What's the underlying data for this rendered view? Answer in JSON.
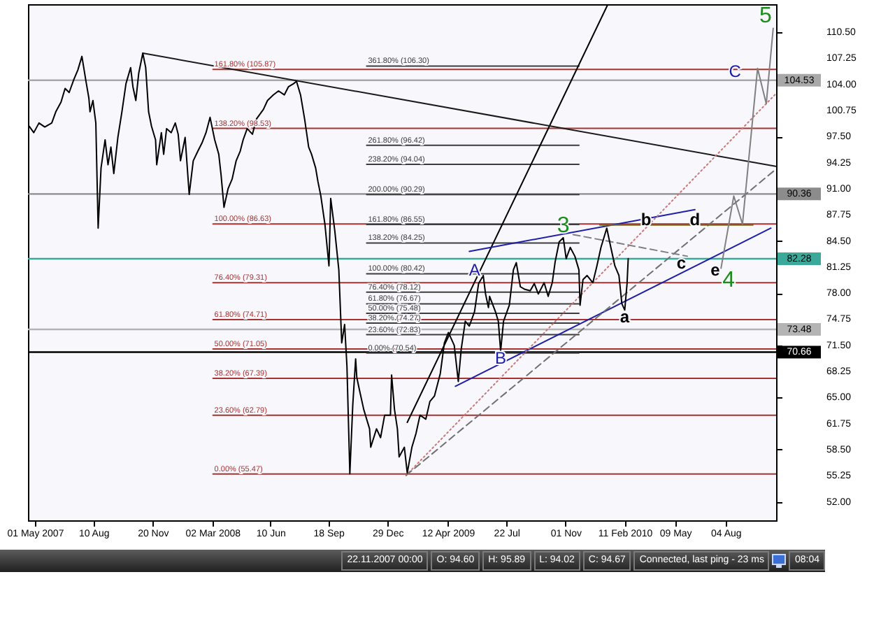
{
  "chart_data": {
    "type": "line",
    "xlim": [
      "2007-04-19",
      "2010-10-30"
    ],
    "xticks": [
      {
        "value": "2007-05-01",
        "label": "01 May 2007"
      },
      {
        "value": "2007-08-10",
        "label": "10 Aug"
      },
      {
        "value": "2007-11-20",
        "label": "20 Nov"
      },
      {
        "value": "2008-03-02",
        "label": "02 Mar 2008"
      },
      {
        "value": "2008-06-10",
        "label": "10 Jun"
      },
      {
        "value": "2008-09-18",
        "label": "18 Sep"
      },
      {
        "value": "2008-12-29",
        "label": "29 Dec"
      },
      {
        "value": "2009-04-12",
        "label": "12 Apr 2009"
      },
      {
        "value": "2009-07-22",
        "label": "22 Jul"
      },
      {
        "value": "2009-11-01",
        "label": "01 Nov"
      },
      {
        "value": "2010-02-11",
        "label": "11 Feb 2010"
      },
      {
        "value": "2010-05-09",
        "label": "09 May"
      },
      {
        "value": "2010-08-04",
        "label": "04 Aug"
      }
    ],
    "ylim": [
      49.7,
      114.0
    ],
    "yticks": [
      {
        "value": 52,
        "label": "52.00"
      },
      {
        "value": 55.25,
        "label": "55.25"
      },
      {
        "value": 58.5,
        "label": "58.50"
      },
      {
        "value": 61.75,
        "label": "61.75"
      },
      {
        "value": 65,
        "label": "65.00"
      },
      {
        "value": 68.25,
        "label": "68.25"
      },
      {
        "value": 71.5,
        "label": "71.50"
      },
      {
        "value": 74.75,
        "label": "74.75"
      },
      {
        "value": 78,
        "label": "78.00"
      },
      {
        "value": 81.25,
        "label": "81.25"
      },
      {
        "value": 84.5,
        "label": "84.50"
      },
      {
        "value": 87.75,
        "label": "87.75"
      },
      {
        "value": 91,
        "label": "91.00"
      },
      {
        "value": 94.25,
        "label": "94.25"
      },
      {
        "value": 97.5,
        "label": "97.50"
      },
      {
        "value": 100.75,
        "label": "100.75"
      },
      {
        "value": 104,
        "label": "104.00"
      },
      {
        "value": 107.25,
        "label": "107.25"
      },
      {
        "value": 110.5,
        "label": "110.50"
      }
    ],
    "series": [
      {
        "name": "161.80% (105.87)",
        "color": "#a83232",
        "x": [
          "2008-03-03",
          "2010-10-30"
        ],
        "values": [
          105.87,
          105.87
        ]
      },
      {
        "name": "138.20% (98.53)",
        "color": "#a83232",
        "x": [
          "2008-03-03",
          "2010-10-30"
        ],
        "values": [
          98.53,
          98.53
        ]
      },
      {
        "name": "100.00% (86.63)",
        "color": "#a83232",
        "x": [
          "2008-03-03",
          "2010-10-30"
        ],
        "values": [
          86.63,
          86.63
        ]
      },
      {
        "name": "76.40% (79.31)",
        "color": "#a83232",
        "x": [
          "2008-03-03",
          "2010-10-30"
        ],
        "values": [
          79.31,
          79.31
        ]
      },
      {
        "name": "61.80% (74.71)",
        "color": "#a83232",
        "x": [
          "2008-03-03",
          "2010-10-30"
        ],
        "values": [
          74.71,
          74.71
        ]
      },
      {
        "name": "50.00% (71.05)",
        "color": "#a83232",
        "x": [
          "2008-03-03",
          "2010-10-30"
        ],
        "values": [
          71.05,
          71.05
        ]
      },
      {
        "name": "38.20% (67.39)",
        "color": "#a83232",
        "x": [
          "2008-03-03",
          "2010-10-30"
        ],
        "values": [
          67.39,
          67.39
        ]
      },
      {
        "name": "23.60% (62.79)",
        "color": "#a83232",
        "x": [
          "2008-03-03",
          "2010-10-30"
        ],
        "values": [
          62.79,
          62.79
        ]
      },
      {
        "name": "0.00% (55.47)",
        "color": "#a83232",
        "x": [
          "2008-03-03",
          "2010-10-30"
        ],
        "values": [
          55.47,
          55.47
        ]
      },
      {
        "name": "361.80% (106.30)",
        "color": "#3c3c3c",
        "x": [
          "2008-11-23",
          "2009-11-24"
        ],
        "values": [
          106.3,
          106.3
        ]
      },
      {
        "name": "261.80% (96.42)",
        "color": "#3c3c3c",
        "x": [
          "2008-11-23",
          "2009-11-24"
        ],
        "values": [
          96.42,
          96.42
        ]
      },
      {
        "name": "238.20% (94.04)",
        "color": "#3c3c3c",
        "x": [
          "2008-11-23",
          "2009-11-24"
        ],
        "values": [
          94.04,
          94.04
        ]
      },
      {
        "name": "200.00% (90.29)",
        "color": "#3c3c3c",
        "x": [
          "2008-11-23",
          "2009-11-24"
        ],
        "values": [
          90.29,
          90.29
        ]
      },
      {
        "name": "161.80% (86.55)",
        "color": "#3c3c3c",
        "x": [
          "2008-11-23",
          "2009-11-24"
        ],
        "values": [
          86.55,
          86.55
        ]
      },
      {
        "name": "138.20% (84.25)",
        "color": "#3c3c3c",
        "x": [
          "2008-11-23",
          "2009-11-24"
        ],
        "values": [
          84.25,
          84.25
        ]
      },
      {
        "name": "100.00% (80.42)",
        "color": "#3c3c3c",
        "x": [
          "2008-11-23",
          "2009-11-24"
        ],
        "values": [
          80.42,
          80.42
        ]
      },
      {
        "name": "76.40% (78.12)",
        "color": "#3c3c3c",
        "x": [
          "2008-11-23",
          "2009-11-24"
        ],
        "values": [
          78.12,
          78.12
        ]
      },
      {
        "name": "61.80% (76.67)",
        "color": "#3c3c3c",
        "x": [
          "2008-11-23",
          "2009-11-24"
        ],
        "values": [
          76.67,
          76.67
        ]
      },
      {
        "name": "50.00% (75.48)",
        "color": "#3c3c3c",
        "x": [
          "2008-11-23",
          "2009-11-24"
        ],
        "values": [
          75.48,
          75.48
        ]
      },
      {
        "name": "38.20% (74.27)",
        "color": "#3c3c3c",
        "x": [
          "2008-11-23",
          "2009-11-24"
        ],
        "values": [
          74.27,
          74.27
        ]
      },
      {
        "name": "23.60% (72.83)",
        "color": "#3c3c3c",
        "x": [
          "2008-11-23",
          "2009-11-24"
        ],
        "values": [
          72.83,
          72.83
        ]
      },
      {
        "name": "0.00% (70.54)",
        "color": "#3c3c3c",
        "x": [
          "2008-11-23",
          "2009-11-24"
        ],
        "values": [
          70.54,
          70.54
        ]
      },
      {
        "color": "#000000",
        "x": [
          "2009-02-01",
          "2010-01-13"
        ],
        "values": [
          61.9,
          114.0
        ]
      },
      {
        "color": "#1a1a1a",
        "x": [
          "2007-11-03",
          "2010-10-29"
        ],
        "values": [
          107.9,
          93.8
        ]
      },
      {
        "color": "#1f1fa8",
        "x": [
          "2009-05-19",
          "2010-06-12"
        ],
        "values": [
          83.2,
          88.4
        ]
      },
      {
        "color": "#1f1fa8",
        "x": [
          "2009-04-25",
          "2010-10-21"
        ],
        "values": [
          66.4,
          86.1
        ]
      },
      {
        "color": "#c87878",
        "line_style": "dotted",
        "x": [
          "2009-01-30",
          "2010-10-29"
        ],
        "values": [
          55.3,
          102.8
        ]
      },
      {
        "color": "#707070",
        "line_style": "dashed",
        "x": [
          "2009-01-30",
          "2010-10-29"
        ],
        "values": [
          55.3,
          93.4
        ]
      },
      {
        "color": "#808080",
        "line_style": "dashed",
        "x": [
          "2009-11-14",
          "2010-05-30"
        ],
        "values": [
          85.3,
          82.6
        ]
      },
      {
        "color": "#6e6e1e",
        "x": [
          "2009-12-30",
          "2010-09-20"
        ],
        "values": [
          86.5,
          86.5
        ]
      },
      {
        "color": "#808080",
        "x": [
          "2010-07-27",
          "2010-08-18",
          "2010-09-02",
          "2010-09-28",
          "2010-10-13",
          "2010-10-25"
        ],
        "values": [
          81.1,
          90.1,
          86.6,
          106.0,
          101.6,
          111.0
        ]
      },
      {
        "color": "#000000",
        "x": [
          "2007-04-21",
          "2007-04-29",
          "2007-05-08",
          "2007-05-18",
          "2007-05-30",
          "2007-06-06",
          "2007-06-15",
          "2007-06-22",
          "2007-06-29",
          "2007-07-07",
          "2007-07-14",
          "2007-07-21",
          "2007-07-28",
          "2007-08-02",
          "2007-08-04",
          "2007-08-09",
          "2007-08-14",
          "2007-08-18",
          "2007-08-23",
          "2007-08-30",
          "2007-09-04",
          "2007-09-09",
          "2007-09-14",
          "2007-09-21",
          "2007-09-28",
          "2007-10-05",
          "2007-10-13",
          "2007-10-17",
          "2007-10-22",
          "2007-10-27",
          "2007-11-03",
          "2007-11-08",
          "2007-11-13",
          "2007-11-18",
          "2007-11-25",
          "2007-11-27",
          "2007-12-05",
          "2007-12-09",
          "2007-12-14",
          "2007-12-22",
          "2007-12-29",
          "2008-01-03",
          "2008-01-07",
          "2008-01-15",
          "2008-01-22",
          "2008-01-29",
          "2008-02-06",
          "2008-02-13",
          "2008-02-20",
          "2008-02-27",
          "2008-03-06",
          "2008-03-13",
          "2008-03-17",
          "2008-03-22",
          "2008-03-29",
          "2008-04-05",
          "2008-04-12",
          "2008-04-19",
          "2008-04-24",
          "2008-05-01",
          "2008-05-10",
          "2008-05-17",
          "2008-05-29",
          "2008-06-05",
          "2008-06-15",
          "2008-06-24",
          "2008-07-04",
          "2008-07-11",
          "2008-07-20",
          "2008-07-25",
          "2008-08-01",
          "2008-08-08",
          "2008-08-15",
          "2008-08-20",
          "2008-08-27",
          "2008-08-31",
          "2008-09-05",
          "2008-09-12",
          "2008-09-19",
          "2008-09-22",
          "2008-09-29",
          "2008-10-06",
          "2008-10-11",
          "2008-10-16",
          "2008-10-20",
          "2008-10-25",
          "2008-10-30",
          "2008-11-04",
          "2008-11-06",
          "2008-11-11",
          "2008-11-18",
          "2008-11-28",
          "2008-11-30",
          "2008-12-10",
          "2008-12-17",
          "2008-12-24",
          "2009-01-03",
          "2009-01-05",
          "2009-01-10",
          "2009-01-15",
          "2009-01-18",
          "2009-01-27",
          "2009-02-01",
          "2009-02-09",
          "2009-02-16",
          "2009-02-23",
          "2009-03-05",
          "2009-03-12",
          "2009-03-20",
          "2009-03-30",
          "2009-04-06",
          "2009-04-13",
          "2009-04-23",
          "2009-04-30",
          "2009-05-05",
          "2009-05-12",
          "2009-05-19",
          "2009-05-28",
          "2009-06-04",
          "2009-06-12",
          "2009-06-16",
          "2009-06-21",
          "2009-06-23",
          "2009-07-03",
          "2009-07-08",
          "2009-07-12",
          "2009-07-17",
          "2009-07-27",
          "2009-08-03",
          "2009-08-08",
          "2009-08-15",
          "2009-08-22",
          "2009-09-01",
          "2009-09-08",
          "2009-09-15",
          "2009-09-25",
          "2009-10-02",
          "2009-10-09",
          "2009-10-14",
          "2009-10-21",
          "2009-10-28",
          "2009-11-02",
          "2009-11-09",
          "2009-11-17",
          "2009-11-24",
          "2009-11-26",
          "2009-12-01",
          "2009-12-08",
          "2009-12-18",
          "2009-12-25",
          "2010-01-01",
          "2010-01-11",
          "2010-01-18",
          "2010-01-25",
          "2010-02-01",
          "2010-02-06",
          "2010-02-11",
          "2010-02-15",
          "2010-02-17"
        ],
        "values": [
          98.8,
          98.0,
          99.2,
          98.7,
          99.2,
          100.6,
          101.8,
          103.5,
          103.0,
          104.6,
          105.8,
          107.5,
          104.4,
          102.3,
          100.6,
          102.0,
          99.2,
          86.1,
          93.6,
          97.1,
          94.0,
          96.2,
          92.9,
          97.4,
          100.6,
          104.1,
          106.1,
          103.7,
          102.0,
          105.4,
          107.9,
          106.1,
          100.6,
          98.8,
          97.1,
          94.0,
          98.0,
          95.3,
          98.5,
          98.0,
          99.2,
          97.8,
          94.5,
          97.4,
          90.3,
          94.5,
          95.7,
          96.7,
          98.0,
          99.9,
          97.1,
          95.3,
          92.7,
          88.7,
          91.0,
          92.2,
          94.5,
          95.7,
          97.1,
          98.5,
          97.8,
          99.7,
          100.9,
          102.0,
          102.7,
          103.2,
          102.7,
          103.7,
          104.1,
          104.4,
          102.7,
          99.7,
          96.2,
          95.3,
          93.6,
          91.9,
          90.1,
          86.6,
          81.4,
          89.8,
          85.8,
          80.9,
          71.8,
          74.1,
          68.9,
          55.5,
          64.0,
          69.8,
          67.5,
          65.8,
          63.5,
          61.1,
          58.8,
          61.1,
          60.0,
          62.8,
          62.8,
          67.8,
          63.5,
          61.1,
          57.6,
          58.8,
          55.6,
          58.8,
          60.5,
          62.8,
          62.3,
          64.5,
          65.2,
          68.0,
          71.8,
          73.1,
          71.5,
          67.0,
          71.0,
          74.5,
          73.9,
          75.7,
          79.2,
          80.2,
          77.9,
          76.2,
          77.6,
          75.7,
          74.5,
          70.8,
          74.5,
          76.5,
          80.9,
          81.8,
          78.8,
          78.5,
          78.3,
          79.2,
          77.9,
          79.3,
          77.6,
          79.3,
          81.9,
          84.4,
          84.9,
          82.3,
          83.7,
          82.6,
          80.9,
          76.5,
          79.7,
          80.2,
          79.3,
          81.4,
          83.7,
          86.1,
          83.7,
          81.4,
          80.2,
          76.7,
          75.9,
          79.2,
          82.3
        ]
      }
    ],
    "ref_lines": [
      {
        "axis": "y",
        "value": 104.53,
        "label": "104.53",
        "color": "#a8a8a8"
      },
      {
        "axis": "y",
        "value": 90.36,
        "label": "90.36",
        "color": "#8c8c8c"
      },
      {
        "axis": "y",
        "value": 82.28,
        "label": "82.28",
        "color": "#3aa99a"
      },
      {
        "axis": "y",
        "value": 73.48,
        "label": "73.48",
        "color": "#b4b4b4"
      },
      {
        "axis": "y",
        "value": 70.66,
        "label": "70.66",
        "color": "#000000"
      }
    ],
    "annotations": [
      {
        "text": "A",
        "x": "2009-05-28",
        "y": 80.9
      },
      {
        "text": "B",
        "x": "2009-07-12",
        "y": 70.8
      },
      {
        "text": "C",
        "x": "2010-08-20",
        "y": 105.6
      },
      {
        "text": "3",
        "x": "2009-10-28",
        "y": 84.9
      },
      {
        "text": "4",
        "x": "2010-07-27",
        "y": 81.1
      },
      {
        "text": "5",
        "x": "2010-10-25",
        "y": 111.0
      },
      {
        "text": "a",
        "x": "2010-02-11",
        "y": 75.9
      },
      {
        "text": "b",
        "x": "2010-03-20",
        "y": 87.2
      },
      {
        "text": "c",
        "x": "2010-05-30",
        "y": 82.6
      },
      {
        "text": "d",
        "x": "2010-06-12",
        "y": 87.2
      },
      {
        "text": "e",
        "x": "2010-07-17",
        "y": 80.9
      },
      "22.11.2007 00:00",
      "O: 94.60",
      "H: 95.89",
      "L: 94.02",
      "C: 94.67",
      "Connected, last ping - 23 ms",
      "08:04"
    ]
  }
}
